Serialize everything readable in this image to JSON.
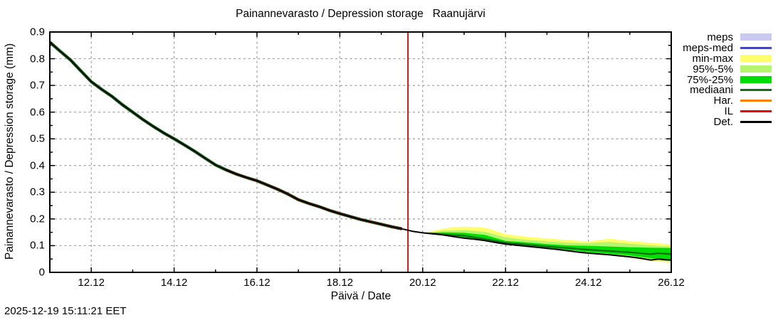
{
  "footer": {
    "timestamp": "2025-12-19 15:11:21 EET"
  },
  "chart_data": {
    "type": "line",
    "title": "Painannevarasto / Depression storage   Raanujärvi",
    "xlabel": "Päivä / Date",
    "ylabel": "Painannevarasto / Depression storage (mm)",
    "x_unit": "date (day.month), December",
    "y_unit": "mm",
    "xlim": [
      11,
      26
    ],
    "ylim": [
      0,
      0.9
    ],
    "grid": true,
    "legend_position": "outside-top-right",
    "x_major_ticks": [
      {
        "x": 12,
        "label": "12.12"
      },
      {
        "x": 14,
        "label": "14.12"
      },
      {
        "x": 16,
        "label": "16.12"
      },
      {
        "x": 18,
        "label": "18.12"
      },
      {
        "x": 20,
        "label": "20.12"
      },
      {
        "x": 22,
        "label": "22.12"
      },
      {
        "x": 24,
        "label": "24.12"
      },
      {
        "x": 26,
        "label": "26.12"
      }
    ],
    "y_major_ticks": [
      {
        "y": 0.0,
        "label": "0"
      },
      {
        "y": 0.1,
        "label": "0.1"
      },
      {
        "y": 0.2,
        "label": "0.2"
      },
      {
        "y": 0.3,
        "label": "0.3"
      },
      {
        "y": 0.4,
        "label": "0.4"
      },
      {
        "y": 0.5,
        "label": "0.5"
      },
      {
        "y": 0.6,
        "label": "0.6"
      },
      {
        "y": 0.7,
        "label": "0.7"
      },
      {
        "y": 0.8,
        "label": "0.8"
      },
      {
        "y": 0.9,
        "label": "0.9"
      }
    ],
    "legend": [
      {
        "label": "meps",
        "color": "#c9c9f2",
        "type": "band"
      },
      {
        "label": "meps-med",
        "color": "#4444bb",
        "type": "line"
      },
      {
        "label": "min-max",
        "color": "#ffff6e",
        "type": "band"
      },
      {
        "label": "95%-5%",
        "color": "#b6f56e",
        "type": "band"
      },
      {
        "label": "75%-25%",
        "color": "#00dd00",
        "type": "band"
      },
      {
        "label": "mediaani",
        "color": "#176b17",
        "type": "line"
      },
      {
        "label": "Har.",
        "color": "#ff8000",
        "type": "line"
      },
      {
        "label": "IL",
        "color": "#e80000",
        "type": "line"
      },
      {
        "label": "Det.",
        "color": "#000000",
        "type": "line"
      }
    ],
    "now_line": {
      "x": 19.645,
      "color": "#d00000"
    },
    "series": [
      {
        "name": "Det.",
        "color": "#000000",
        "width": 2,
        "points": [
          [
            11.0,
            0.862
          ],
          [
            11.25,
            0.828
          ],
          [
            11.5,
            0.795
          ],
          [
            11.75,
            0.754
          ],
          [
            12.0,
            0.714
          ],
          [
            12.25,
            0.685
          ],
          [
            12.5,
            0.659
          ],
          [
            12.75,
            0.628
          ],
          [
            13.0,
            0.6
          ],
          [
            13.25,
            0.572
          ],
          [
            13.5,
            0.546
          ],
          [
            13.75,
            0.522
          ],
          [
            14.0,
            0.5
          ],
          [
            14.25,
            0.477
          ],
          [
            14.5,
            0.453
          ],
          [
            14.75,
            0.427
          ],
          [
            15.0,
            0.402
          ],
          [
            15.25,
            0.384
          ],
          [
            15.5,
            0.368
          ],
          [
            15.75,
            0.355
          ],
          [
            16.0,
            0.343
          ],
          [
            16.25,
            0.327
          ],
          [
            16.5,
            0.311
          ],
          [
            16.75,
            0.293
          ],
          [
            17.0,
            0.272
          ],
          [
            17.25,
            0.258
          ],
          [
            17.5,
            0.246
          ],
          [
            17.75,
            0.232
          ],
          [
            18.0,
            0.22
          ],
          [
            18.25,
            0.209
          ],
          [
            18.5,
            0.198
          ],
          [
            18.75,
            0.189
          ],
          [
            19.0,
            0.18
          ],
          [
            19.25,
            0.171
          ],
          [
            19.5,
            0.163
          ],
          [
            19.75,
            0.154
          ],
          [
            20.0,
            0.148
          ],
          [
            20.25,
            0.144
          ],
          [
            20.5,
            0.14
          ],
          [
            20.75,
            0.134
          ],
          [
            21.0,
            0.128
          ],
          [
            21.25,
            0.124
          ],
          [
            21.5,
            0.119
          ],
          [
            21.75,
            0.112
          ],
          [
            22.0,
            0.106
          ],
          [
            22.25,
            0.102
          ],
          [
            22.5,
            0.098
          ],
          [
            22.75,
            0.094
          ],
          [
            23.0,
            0.09
          ],
          [
            23.25,
            0.086
          ],
          [
            23.5,
            0.081
          ],
          [
            23.75,
            0.076
          ],
          [
            24.0,
            0.072
          ],
          [
            24.25,
            0.069
          ],
          [
            24.5,
            0.066
          ],
          [
            24.75,
            0.062
          ],
          [
            25.0,
            0.058
          ],
          [
            25.25,
            0.053
          ],
          [
            25.5,
            0.046
          ],
          [
            25.7,
            0.05
          ],
          [
            25.85,
            0.047
          ],
          [
            26.0,
            0.046
          ]
        ]
      },
      {
        "name": "mediaani",
        "color": "#176b17",
        "width": 2.2,
        "points": [
          [
            20.08,
            0.147
          ],
          [
            20.5,
            0.142
          ],
          [
            21.0,
            0.137
          ],
          [
            21.5,
            0.125
          ],
          [
            22.0,
            0.111
          ],
          [
            22.5,
            0.104
          ],
          [
            23.0,
            0.097
          ],
          [
            23.5,
            0.091
          ],
          [
            24.0,
            0.085
          ],
          [
            24.5,
            0.08
          ],
          [
            25.0,
            0.075
          ],
          [
            25.3,
            0.071
          ],
          [
            25.5,
            0.068
          ],
          [
            25.7,
            0.072
          ],
          [
            26.0,
            0.068
          ]
        ]
      }
    ],
    "bands": [
      {
        "name": "min-max",
        "color": "#ffff6e",
        "points": [
          [
            20.08,
            0.146,
            0.149
          ],
          [
            20.3,
            0.141,
            0.158
          ],
          [
            20.5,
            0.137,
            0.164
          ],
          [
            20.75,
            0.131,
            0.169
          ],
          [
            21.0,
            0.126,
            0.171
          ],
          [
            21.3,
            0.121,
            0.17
          ],
          [
            21.5,
            0.117,
            0.167
          ],
          [
            21.75,
            0.11,
            0.156
          ],
          [
            22.0,
            0.103,
            0.143
          ],
          [
            22.5,
            0.096,
            0.134
          ],
          [
            23.0,
            0.087,
            0.127
          ],
          [
            23.5,
            0.079,
            0.121
          ],
          [
            24.0,
            0.07,
            0.116
          ],
          [
            24.3,
            0.066,
            0.122
          ],
          [
            24.5,
            0.064,
            0.127
          ],
          [
            24.75,
            0.06,
            0.122
          ],
          [
            25.0,
            0.055,
            0.117
          ],
          [
            25.5,
            0.043,
            0.111
          ],
          [
            26.0,
            0.037,
            0.105
          ]
        ]
      },
      {
        "name": "95%-5%",
        "color": "#b6f56e",
        "points": [
          [
            20.08,
            0.146,
            0.148
          ],
          [
            20.5,
            0.138,
            0.156
          ],
          [
            21.0,
            0.128,
            0.158
          ],
          [
            21.5,
            0.118,
            0.152
          ],
          [
            22.0,
            0.105,
            0.131
          ],
          [
            22.5,
            0.098,
            0.122
          ],
          [
            23.0,
            0.09,
            0.116
          ],
          [
            23.5,
            0.082,
            0.111
          ],
          [
            24.0,
            0.073,
            0.109
          ],
          [
            24.3,
            0.07,
            0.113
          ],
          [
            24.5,
            0.067,
            0.114
          ],
          [
            25.0,
            0.059,
            0.107
          ],
          [
            25.5,
            0.047,
            0.101
          ],
          [
            26.0,
            0.041,
            0.097
          ]
        ]
      },
      {
        "name": "75%-25%",
        "color": "#00dd00",
        "points": [
          [
            20.08,
            0.146,
            0.148
          ],
          [
            20.5,
            0.139,
            0.15
          ],
          [
            21.0,
            0.131,
            0.148
          ],
          [
            21.5,
            0.12,
            0.14
          ],
          [
            22.0,
            0.107,
            0.118
          ],
          [
            22.5,
            0.1,
            0.112
          ],
          [
            23.0,
            0.092,
            0.106
          ],
          [
            23.5,
            0.084,
            0.101
          ],
          [
            24.0,
            0.076,
            0.099
          ],
          [
            24.5,
            0.07,
            0.097
          ],
          [
            25.0,
            0.063,
            0.094
          ],
          [
            25.5,
            0.053,
            0.092
          ],
          [
            26.0,
            0.045,
            0.091
          ]
        ]
      }
    ]
  }
}
